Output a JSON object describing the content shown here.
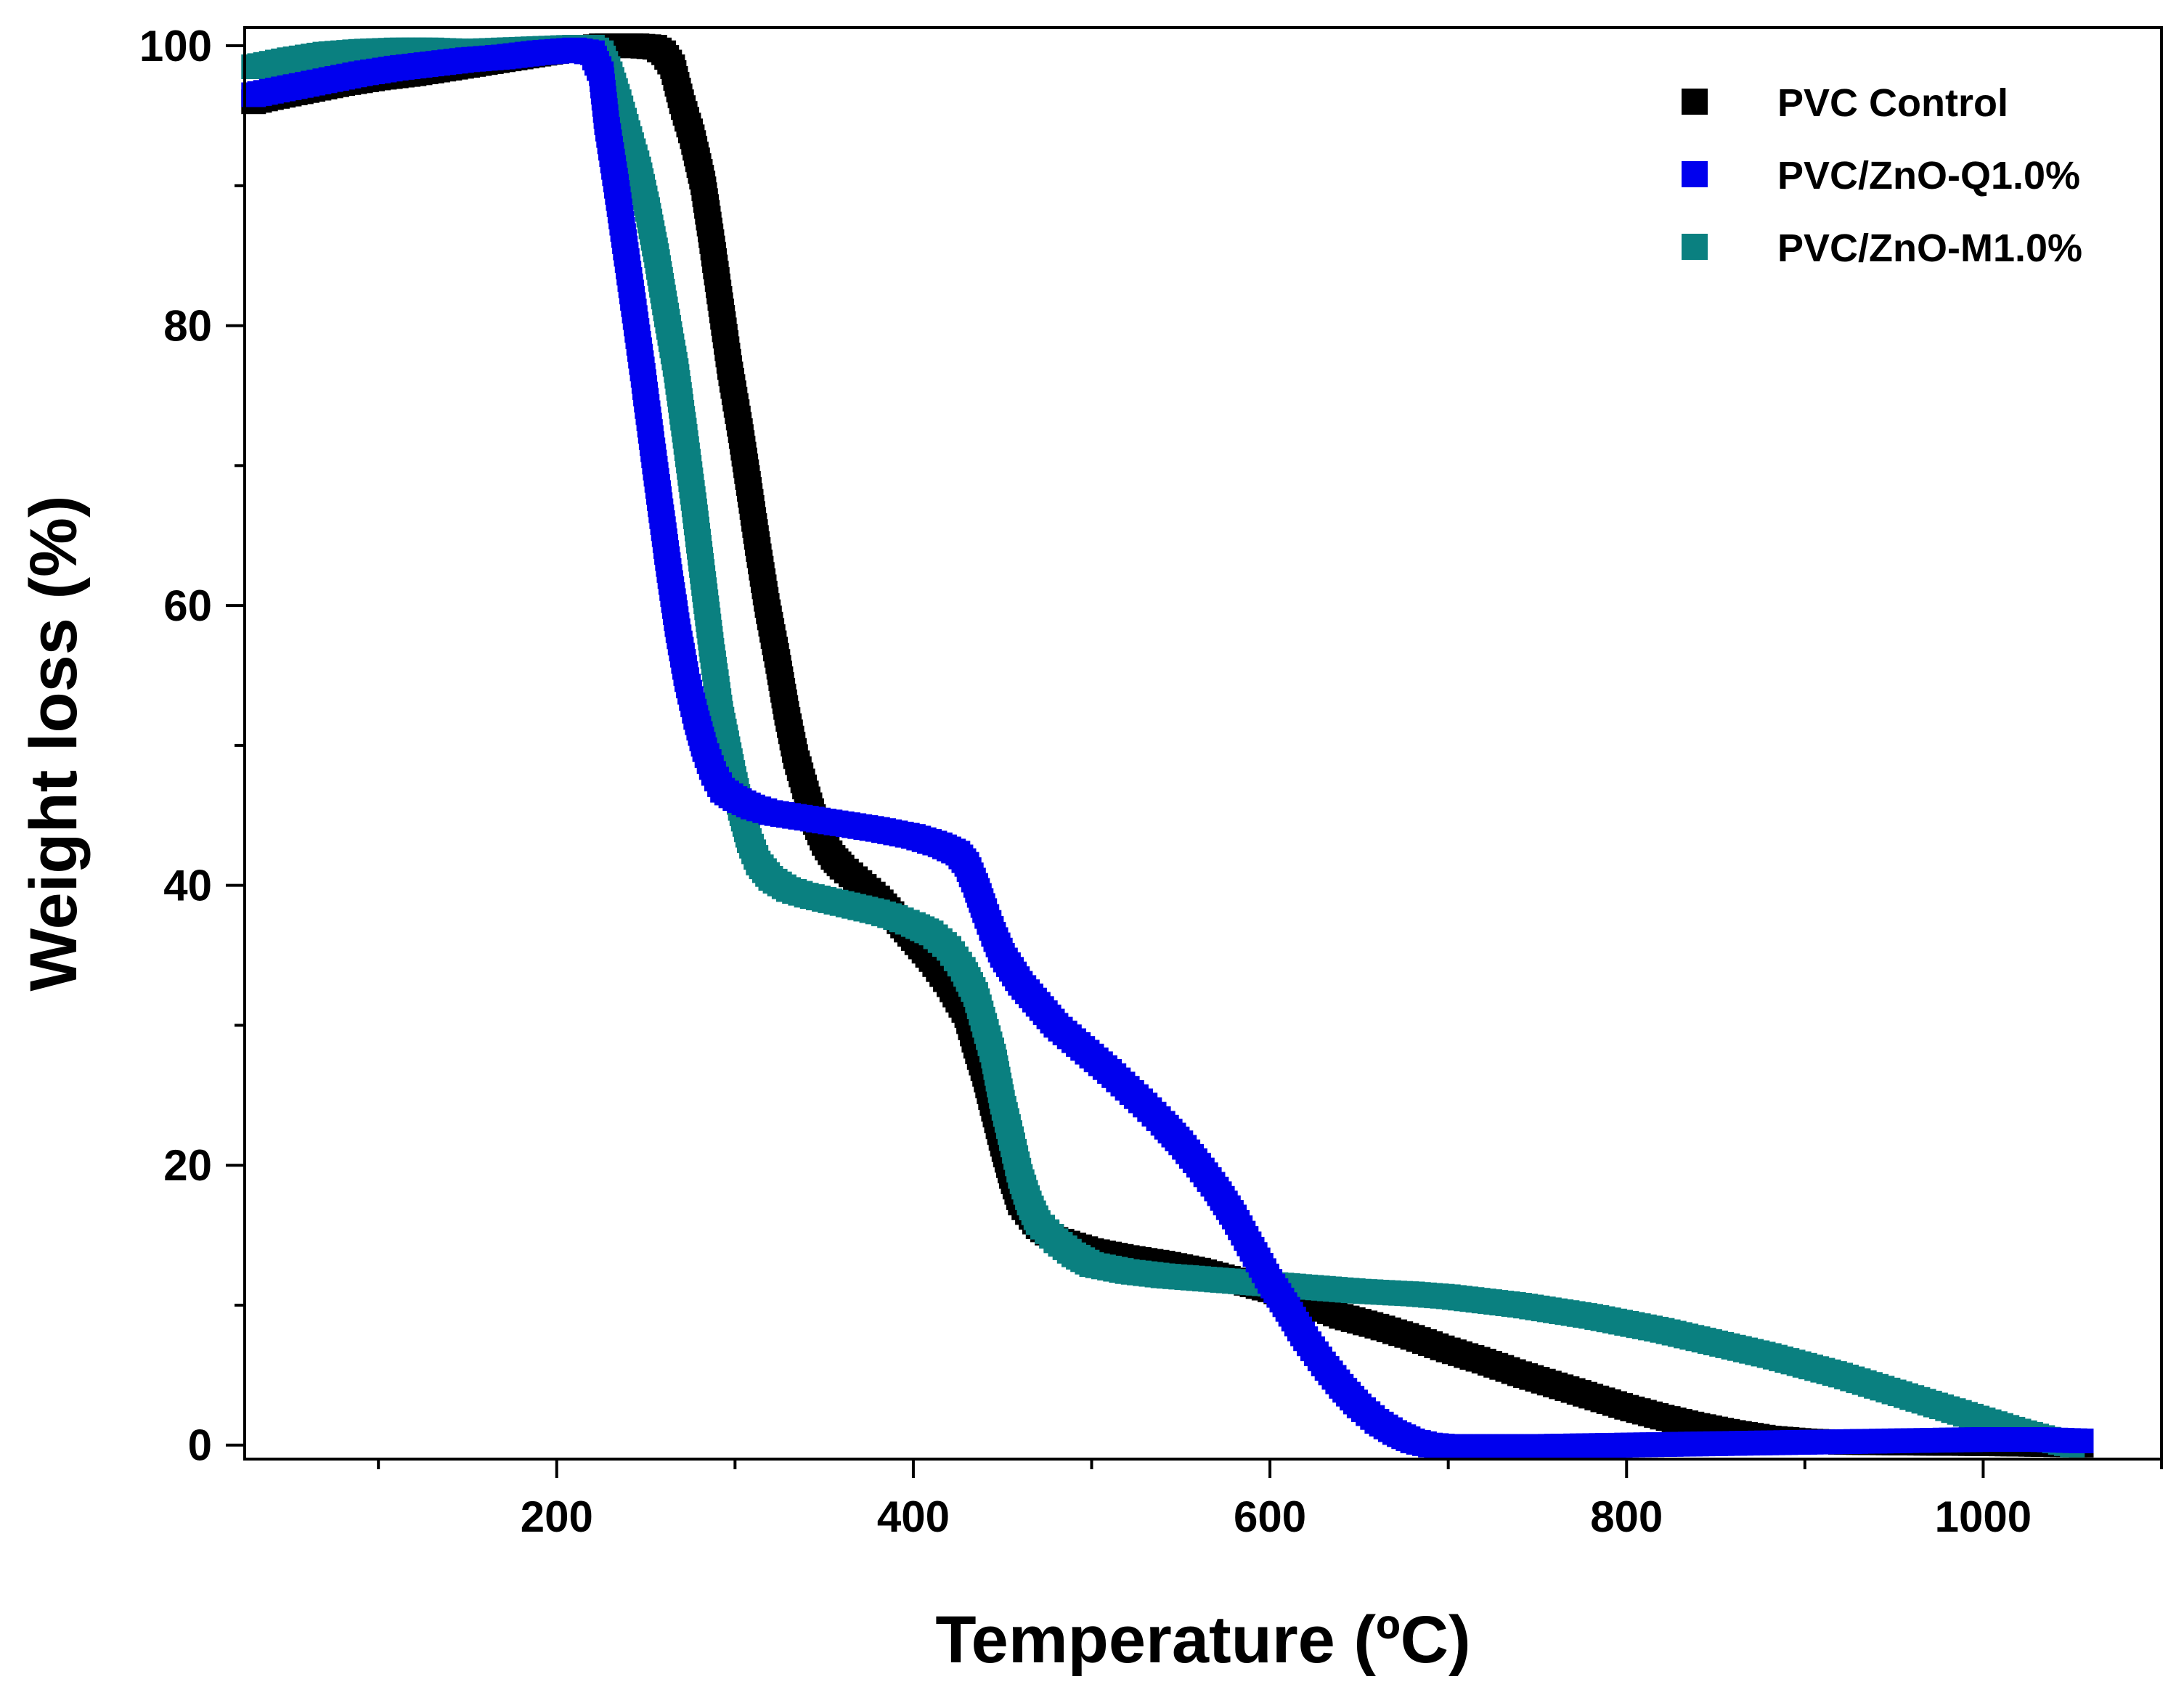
{
  "chart_data": {
    "type": "scatter",
    "xlabel": "Temperature (ºC)",
    "ylabel": "Weight loss (%)",
    "xlim": [
      25,
      1100
    ],
    "ylim": [
      -1,
      101.3
    ],
    "xticks": [
      200,
      400,
      600,
      800,
      1000
    ],
    "yticks": [
      0,
      20,
      40,
      60,
      80,
      100
    ],
    "x_minor_ticks": [
      100,
      300,
      500,
      700,
      900,
      1100
    ],
    "y_minor_ticks": [
      10,
      30,
      50,
      70,
      90
    ],
    "legend_position": "top-right",
    "marker": "square",
    "series": [
      {
        "name": "PVC Control",
        "color": "#000000",
        "points": [
          [
            30,
            96
          ],
          [
            40,
            96.3
          ],
          [
            60,
            96.8
          ],
          [
            80,
            97.3
          ],
          [
            100,
            97.7
          ],
          [
            120,
            98
          ],
          [
            140,
            98.4
          ],
          [
            160,
            98.8
          ],
          [
            180,
            99.2
          ],
          [
            200,
            99.6
          ],
          [
            215,
            99.8
          ],
          [
            225,
            100
          ],
          [
            235,
            100
          ],
          [
            245,
            100
          ],
          [
            255,
            99.9
          ],
          [
            260,
            99.5
          ],
          [
            265,
            98.5
          ],
          [
            270,
            96
          ],
          [
            276,
            93.5
          ],
          [
            282,
            90.2
          ],
          [
            287,
            86
          ],
          [
            292,
            81.5
          ],
          [
            297,
            77
          ],
          [
            303,
            72.5
          ],
          [
            308,
            68.3
          ],
          [
            313,
            64
          ],
          [
            318,
            60
          ],
          [
            324,
            56
          ],
          [
            329,
            52.3
          ],
          [
            334,
            49.2
          ],
          [
            340,
            46.6
          ],
          [
            345,
            44.5
          ],
          [
            350,
            43
          ],
          [
            355,
            42
          ],
          [
            360,
            41.3
          ],
          [
            370,
            40.2
          ],
          [
            380,
            39.1
          ],
          [
            390,
            37.7
          ],
          [
            400,
            36.2
          ],
          [
            410,
            34.7
          ],
          [
            420,
            32.9
          ],
          [
            430,
            30.7
          ],
          [
            435,
            28.5
          ],
          [
            440,
            26.5
          ],
          [
            445,
            24
          ],
          [
            450,
            21.5
          ],
          [
            455,
            19.2
          ],
          [
            460,
            17.3
          ],
          [
            470,
            15.6
          ],
          [
            480,
            14.7
          ],
          [
            500,
            13.9
          ],
          [
            520,
            13.4
          ],
          [
            540,
            13
          ],
          [
            560,
            12.5
          ],
          [
            580,
            11.8
          ],
          [
            600,
            11.1
          ],
          [
            620,
            10.2
          ],
          [
            640,
            9.2
          ],
          [
            660,
            8.5
          ],
          [
            680,
            7.7
          ],
          [
            700,
            6.8
          ],
          [
            720,
            6
          ],
          [
            740,
            5.1
          ],
          [
            760,
            4.3
          ],
          [
            780,
            3.5
          ],
          [
            800,
            2.7
          ],
          [
            820,
            2
          ],
          [
            840,
            1.4
          ],
          [
            860,
            0.9
          ],
          [
            880,
            0.5
          ],
          [
            900,
            0.3
          ],
          [
            920,
            0.2
          ],
          [
            950,
            0.15
          ],
          [
            1000,
            0.1
          ],
          [
            1030,
            0.05
          ],
          [
            1055,
            0
          ]
        ]
      },
      {
        "name": "PVC/ZnO-Q1.0%",
        "color": "#0000ee",
        "points": [
          [
            30,
            96.5
          ],
          [
            50,
            97
          ],
          [
            70,
            97.5
          ],
          [
            90,
            98
          ],
          [
            110,
            98.4
          ],
          [
            130,
            98.7
          ],
          [
            150,
            99
          ],
          [
            170,
            99.2
          ],
          [
            190,
            99.5
          ],
          [
            210,
            99.7
          ],
          [
            220,
            99.5
          ],
          [
            225,
            98
          ],
          [
            228,
            94.5
          ],
          [
            233,
            90.4
          ],
          [
            238,
            86
          ],
          [
            243,
            81.5
          ],
          [
            248,
            76.9
          ],
          [
            253,
            72
          ],
          [
            258,
            67.2
          ],
          [
            263,
            62.5
          ],
          [
            268,
            58.2
          ],
          [
            273,
            54.7
          ],
          [
            278,
            52
          ],
          [
            283,
            49.7
          ],
          [
            288,
            48
          ],
          [
            293,
            46.8
          ],
          [
            300,
            46.2
          ],
          [
            310,
            45.6
          ],
          [
            320,
            45.2
          ],
          [
            340,
            44.8
          ],
          [
            360,
            44.4
          ],
          [
            380,
            44
          ],
          [
            400,
            43.5
          ],
          [
            415,
            42.9
          ],
          [
            425,
            42.3
          ],
          [
            430,
            41.5
          ],
          [
            435,
            40
          ],
          [
            440,
            38.2
          ],
          [
            445,
            36.5
          ],
          [
            450,
            35
          ],
          [
            460,
            33
          ],
          [
            470,
            31.5
          ],
          [
            480,
            30
          ],
          [
            490,
            28.9
          ],
          [
            500,
            27.8
          ],
          [
            510,
            26.7
          ],
          [
            520,
            25.5
          ],
          [
            530,
            24.3
          ],
          [
            540,
            23
          ],
          [
            550,
            21.6
          ],
          [
            560,
            20
          ],
          [
            570,
            18.3
          ],
          [
            580,
            16.3
          ],
          [
            590,
            14
          ],
          [
            600,
            11.7
          ],
          [
            610,
            9.7
          ],
          [
            620,
            7.6
          ],
          [
            630,
            5.8
          ],
          [
            640,
            4.2
          ],
          [
            650,
            2.8
          ],
          [
            660,
            1.7
          ],
          [
            670,
            0.9
          ],
          [
            680,
            0.3
          ],
          [
            690,
            0
          ],
          [
            700,
            -0.1
          ],
          [
            750,
            -0.1
          ],
          [
            800,
            0
          ],
          [
            850,
            0.1
          ],
          [
            900,
            0.2
          ],
          [
            950,
            0.3
          ],
          [
            1000,
            0.4
          ],
          [
            1030,
            0.4
          ],
          [
            1055,
            0.3
          ]
        ]
      },
      {
        "name": "PVC/ZnO-M1.0%",
        "color": "#0a8080",
        "points": [
          [
            30,
            98.5
          ],
          [
            50,
            99
          ],
          [
            70,
            99.4
          ],
          [
            90,
            99.6
          ],
          [
            110,
            99.7
          ],
          [
            130,
            99.7
          ],
          [
            150,
            99.6
          ],
          [
            170,
            99.7
          ],
          [
            190,
            99.8
          ],
          [
            210,
            99.9
          ],
          [
            220,
            99.9
          ],
          [
            225,
            99.5
          ],
          [
            230,
            98
          ],
          [
            235,
            96
          ],
          [
            240,
            93.8
          ],
          [
            246,
            91.2
          ],
          [
            251,
            88.3
          ],
          [
            256,
            85
          ],
          [
            261,
            81.2
          ],
          [
            267,
            76.8
          ],
          [
            272,
            72.1
          ],
          [
            277,
            67.2
          ],
          [
            282,
            62
          ],
          [
            287,
            56.8
          ],
          [
            292,
            52.3
          ],
          [
            298,
            48.5
          ],
          [
            303,
            45.5
          ],
          [
            308,
            43.2
          ],
          [
            313,
            41.6
          ],
          [
            320,
            40.5
          ],
          [
            330,
            39.7
          ],
          [
            340,
            39.3
          ],
          [
            350,
            39
          ],
          [
            360,
            38.7
          ],
          [
            370,
            38.4
          ],
          [
            380,
            38.1
          ],
          [
            390,
            37.7
          ],
          [
            400,
            37.2
          ],
          [
            410,
            36.6
          ],
          [
            420,
            35.5
          ],
          [
            428,
            34
          ],
          [
            435,
            32.2
          ],
          [
            440,
            30
          ],
          [
            445,
            27.8
          ],
          [
            450,
            24.5
          ],
          [
            455,
            21.9
          ],
          [
            460,
            19.2
          ],
          [
            465,
            17.3
          ],
          [
            470,
            15.9
          ],
          [
            480,
            14.6
          ],
          [
            490,
            13.6
          ],
          [
            500,
            12.9
          ],
          [
            520,
            12.4
          ],
          [
            540,
            12.1
          ],
          [
            560,
            11.9
          ],
          [
            580,
            11.7
          ],
          [
            600,
            11.5
          ],
          [
            620,
            11.3
          ],
          [
            650,
            11
          ],
          [
            680,
            10.8
          ],
          [
            700,
            10.6
          ],
          [
            720,
            10.3
          ],
          [
            740,
            10
          ],
          [
            760,
            9.6
          ],
          [
            780,
            9.2
          ],
          [
            800,
            8.7
          ],
          [
            820,
            8.2
          ],
          [
            840,
            7.6
          ],
          [
            860,
            7
          ],
          [
            880,
            6.4
          ],
          [
            900,
            5.7
          ],
          [
            920,
            5
          ],
          [
            940,
            4.2
          ],
          [
            960,
            3.4
          ],
          [
            980,
            2.6
          ],
          [
            1000,
            1.8
          ],
          [
            1020,
            1
          ],
          [
            1040,
            0.3
          ],
          [
            1050,
            0
          ]
        ]
      }
    ]
  }
}
